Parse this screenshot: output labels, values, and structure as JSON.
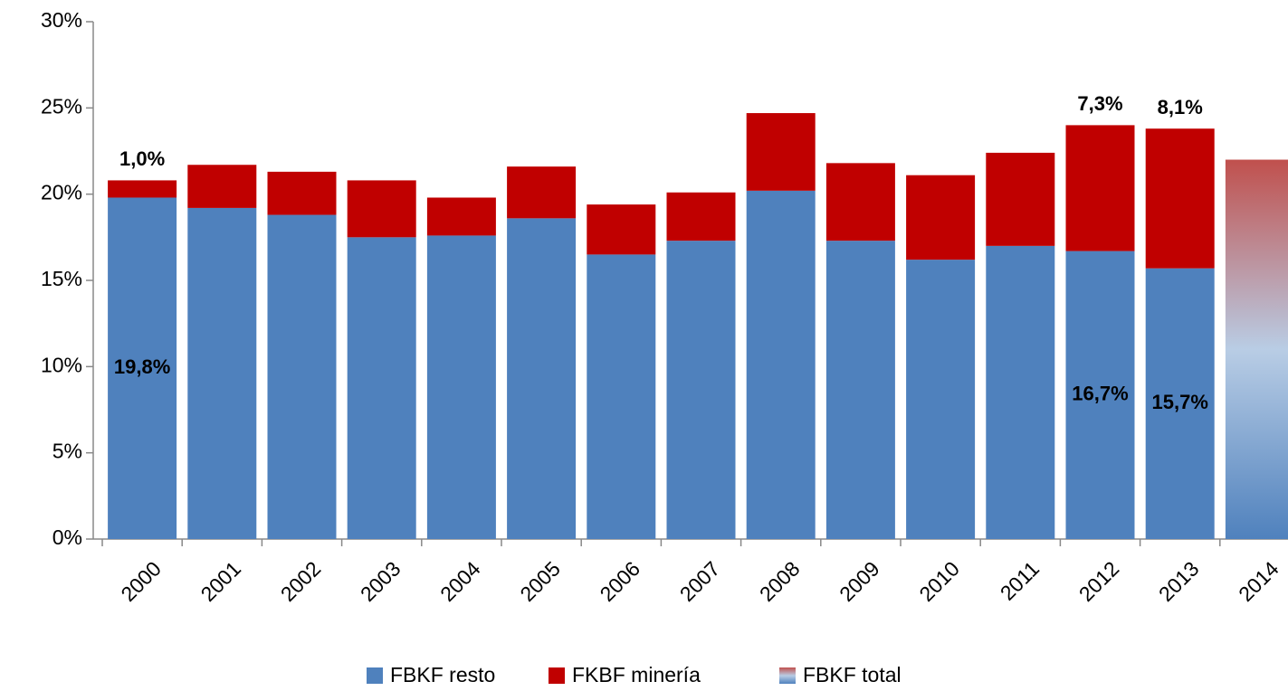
{
  "chart_data": {
    "type": "stacked_bar",
    "categories": [
      "2000",
      "2001",
      "2002",
      "2003",
      "2004",
      "2005",
      "2006",
      "2007",
      "2008",
      "2009",
      "2010",
      "2011",
      "2012",
      "2013",
      "2014"
    ],
    "series": [
      {
        "name": "FBKF resto",
        "color": "#4f81bd",
        "values": [
          19.8,
          19.2,
          18.8,
          17.5,
          17.6,
          18.6,
          16.5,
          17.3,
          20.2,
          17.3,
          16.2,
          17.0,
          16.7,
          15.7,
          null
        ],
        "value_labels": [
          "19,8%",
          null,
          null,
          null,
          null,
          null,
          null,
          null,
          null,
          null,
          null,
          null,
          "16,7%",
          "15,7%",
          null
        ]
      },
      {
        "name": "FKBF minería",
        "color": "#c00000",
        "values": [
          1.0,
          2.5,
          2.5,
          3.3,
          2.2,
          3.0,
          2.9,
          2.8,
          4.5,
          4.5,
          4.9,
          5.4,
          7.3,
          8.1,
          null
        ],
        "value_labels": [
          "1,0%",
          null,
          null,
          null,
          null,
          null,
          null,
          null,
          null,
          null,
          null,
          null,
          "7,3%",
          "8,1%",
          null
        ]
      },
      {
        "name": "FBKF total",
        "colors": [
          "#c0504d",
          "#b9cde5",
          "#4f81bd"
        ],
        "values": [
          null,
          null,
          null,
          null,
          null,
          null,
          null,
          null,
          null,
          null,
          null,
          null,
          null,
          null,
          22.0
        ]
      }
    ],
    "ylim": [
      0,
      30
    ],
    "yticks": [
      {
        "value": 0,
        "label": "0%"
      },
      {
        "value": 5,
        "label": "5%"
      },
      {
        "value": 10,
        "label": "10%"
      },
      {
        "value": 15,
        "label": "15%"
      },
      {
        "value": 20,
        "label": "20%"
      },
      {
        "value": 25,
        "label": "25%"
      },
      {
        "value": 30,
        "label": "30%"
      }
    ],
    "legend": "bottom"
  }
}
